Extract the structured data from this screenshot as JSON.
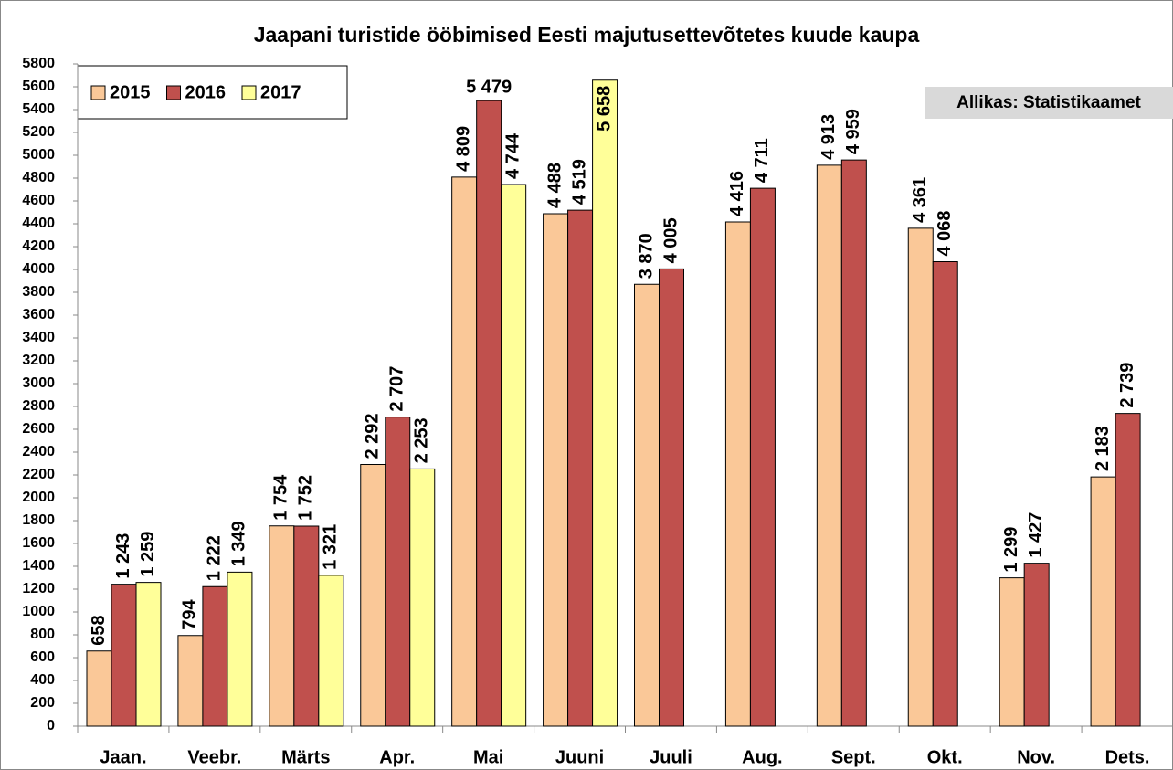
{
  "chart_data": {
    "type": "bar",
    "title": "Jaapani turistide ööbimised Eesti majutusettevõtetes kuude kaupa",
    "annotation": "Allikas: Statistikaamet",
    "categories": [
      "Jaan.",
      "Veebr.",
      "Märts",
      "Apr.",
      "Mai",
      "Juuni",
      "Juuli",
      "Aug.",
      "Sept.",
      "Okt.",
      "Nov.",
      "Dets."
    ],
    "series": [
      {
        "name": "2015",
        "color": "#fac898",
        "values": [
          658,
          794,
          1754,
          2292,
          4809,
          4488,
          3870,
          4416,
          4913,
          4361,
          1299,
          2183
        ],
        "value_labels": [
          "658",
          "794",
          "1 754",
          "2 292",
          "4 809",
          "4 488",
          "3 870",
          "4 416",
          "4 913",
          "4 361",
          "1 299",
          "2 183"
        ]
      },
      {
        "name": "2016",
        "color": "#c0504d",
        "values": [
          1243,
          1222,
          1752,
          2707,
          5479,
          4519,
          4005,
          4711,
          4959,
          4068,
          1427,
          2739
        ],
        "value_labels": [
          "1 243",
          "1 222",
          "1 752",
          "2 707",
          "5 479",
          "4 519",
          "4 005",
          "4 711",
          "4 959",
          "4 068",
          "1 427",
          "2 739"
        ]
      },
      {
        "name": "2017",
        "color": "#ffff99",
        "values": [
          1259,
          1349,
          1321,
          2253,
          4744,
          5658,
          null,
          null,
          null,
          null,
          null,
          null
        ],
        "value_labels": [
          "1 259",
          "1 349",
          "1 321",
          "2 253",
          "4 744",
          "5 658",
          null,
          null,
          null,
          null,
          null,
          null
        ]
      }
    ],
    "ylim": [
      0,
      5800
    ],
    "yticks": [
      0,
      200,
      400,
      600,
      800,
      1000,
      1200,
      1400,
      1600,
      1800,
      2000,
      2200,
      2400,
      2600,
      2800,
      3000,
      3200,
      3400,
      3600,
      3800,
      4000,
      4200,
      4400,
      4600,
      4800,
      5000,
      5200,
      5400,
      5600,
      5800
    ],
    "legend": "top-left",
    "grid": false
  }
}
